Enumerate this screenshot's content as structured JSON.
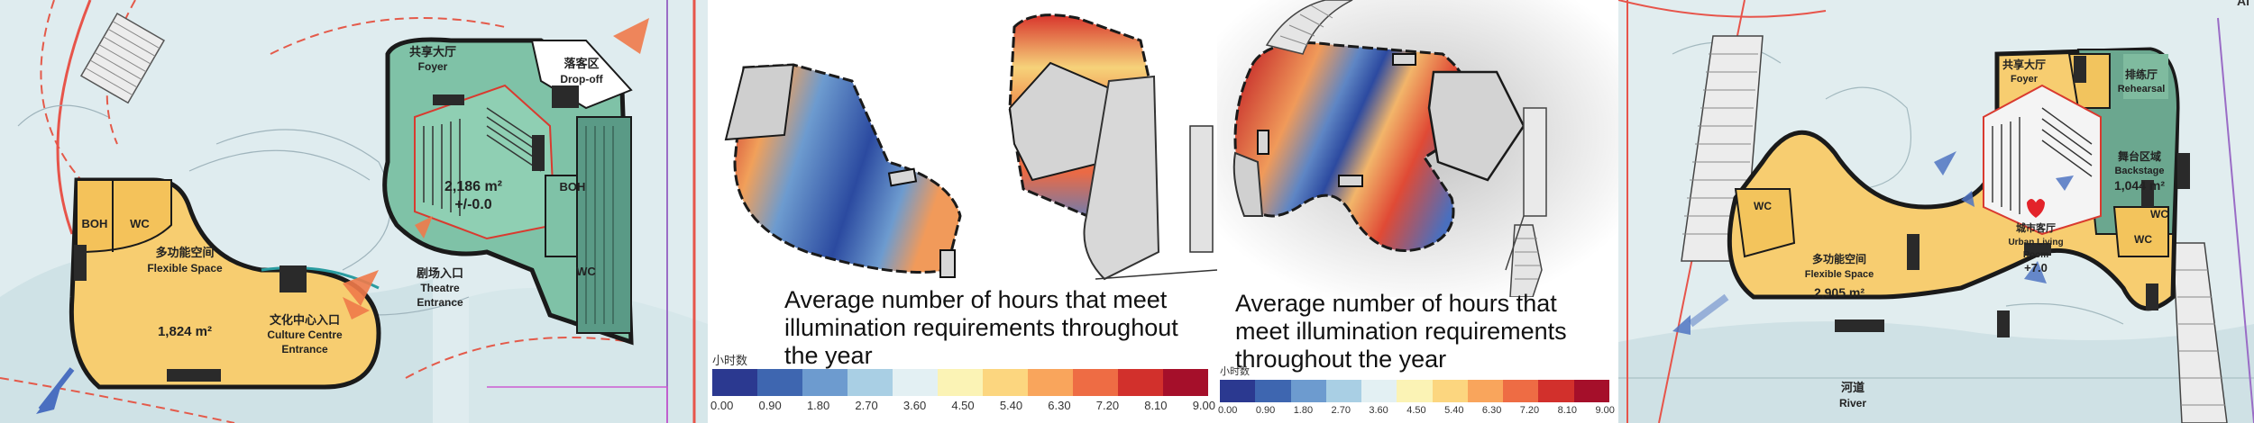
{
  "panel1": {
    "foyer_cn": "共享大厅",
    "foyer_en": "Foyer",
    "dropoff_cn": "落客区",
    "dropoff_en": "Drop-off",
    "boh": "BOH",
    "wc": "WC",
    "boh2": "BOH",
    "wc2": "WC",
    "area1": "2,186 m²",
    "level1": "+/-0.0",
    "theatre_cn": "剧场入口",
    "theatre_en1": "Theatre",
    "theatre_en2": "Entrance",
    "flex_cn": "多功能空间",
    "flex_en": "Flexible Space",
    "flex_area": "1,824 m²",
    "culture_cn": "文化中心入口",
    "culture_en1": "Culture Centre",
    "culture_en2": "Entrance"
  },
  "panel2": {
    "caption": "Average number of hours that meet illumination requirements throughout the year",
    "legend_title": "小时数",
    "ticks": [
      "0.00",
      "0.90",
      "1.80",
      "2.70",
      "3.60",
      "4.50",
      "5.40",
      "6.30",
      "7.20",
      "8.10",
      "9.00"
    ]
  },
  "panel3": {
    "caption": "Average number of hours that meet illumination requirements throughout the year",
    "legend_title": "小时数",
    "ticks": [
      "0.00",
      "0.90",
      "1.80",
      "2.70",
      "3.60",
      "4.50",
      "5.40",
      "6.30",
      "7.20",
      "8.10",
      "9.00"
    ]
  },
  "legend_colors": [
    "#2b3990",
    "#3e66b0",
    "#6d9bcf",
    "#a9cfe4",
    "#e3f0f3",
    "#fbf3b5",
    "#fcd67f",
    "#f9a55c",
    "#ee6c44",
    "#d2302c",
    "#a50f2a"
  ],
  "panel4": {
    "top_right_text": "Ai",
    "foyer_cn": "共享大厅",
    "foyer_en": "Foyer",
    "rehearsal_cn": "排练厅",
    "rehearsal_en": "Rehearsal",
    "backstage_cn": "舞台区域",
    "backstage_en": "Backstage",
    "backstage_area": "1,044 m²",
    "wc1": "WC",
    "wc2": "WC",
    "wc3": "WC",
    "living_cn": "城市客厅",
    "living_en1": "Urban Living",
    "living_en2": "Room",
    "living_level": "+7.0",
    "flex_cn": "多功能空间",
    "flex_en": "Flexible Space",
    "flex_area": "2,905 m²",
    "river_cn": "河道",
    "river_en": "River"
  }
}
